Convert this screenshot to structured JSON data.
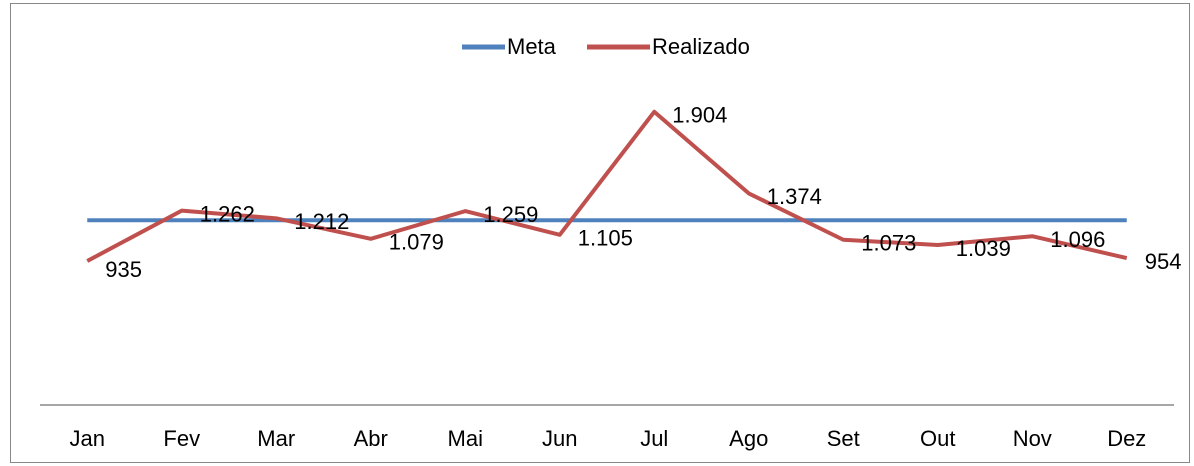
{
  "chart_data": {
    "type": "line",
    "categories": [
      "Jan",
      "Fev",
      "Mar",
      "Abr",
      "Mai",
      "Jun",
      "Jul",
      "Ago",
      "Set",
      "Out",
      "Nov",
      "Dez"
    ],
    "series": [
      {
        "name": "Meta",
        "color": "#4f81bd",
        "values": [
          1200,
          1200,
          1200,
          1200,
          1200,
          1200,
          1200,
          1200,
          1200,
          1200,
          1200,
          1200
        ]
      },
      {
        "name": "Realizado",
        "color": "#c0504d",
        "values": [
          935,
          1262,
          1212,
          1079,
          1259,
          1105,
          1904,
          1374,
          1073,
          1039,
          1096,
          954
        ],
        "value_labels": [
          "935",
          "1.262",
          "1.212",
          "1.079",
          "1.259",
          "1.105",
          "1.904",
          "1.374",
          "1.073",
          "1.039",
          "1.096",
          "954"
        ]
      }
    ],
    "ylim": [
      0,
      2500
    ],
    "legend": "top"
  }
}
